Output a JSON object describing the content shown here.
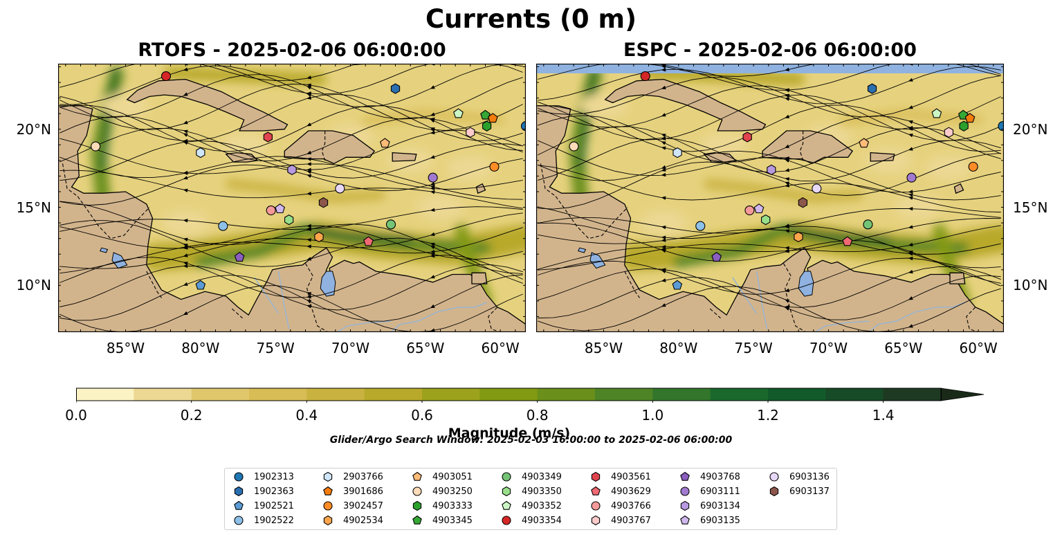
{
  "title": "Currents (0 m)",
  "panels": [
    {
      "title": "RTOFS - 2025-02-06 06:00:00"
    },
    {
      "title": "ESPC - 2025-02-06 06:00:00"
    }
  ],
  "axes": {
    "lon_labels": [
      "85°W",
      "80°W",
      "75°W",
      "70°W",
      "65°W",
      "60°W"
    ],
    "lon_values": [
      -85,
      -80,
      -75,
      -70,
      -65,
      -60
    ],
    "lat_labels": [
      "20°N",
      "15°N",
      "10°N"
    ],
    "lat_values": [
      20,
      15,
      10
    ],
    "lon_range": [
      -89.5,
      -58.3
    ],
    "lat_range": [
      7,
      24.2
    ]
  },
  "colorbar": {
    "label": "Magnitude (m/s)",
    "tick_labels": [
      "0.0",
      "0.2",
      "0.4",
      "0.6",
      "0.8",
      "1.0",
      "1.2",
      "1.4"
    ],
    "range": [
      0,
      1.5
    ],
    "extend": "max",
    "colors": [
      "#fbf3c4",
      "#ecd893",
      "#e0c76c",
      "#d8bc55",
      "#c9b23f",
      "#b8a92a",
      "#9da21d",
      "#829a12",
      "#6a8f1a",
      "#4e8426",
      "#33762b",
      "#1b682c",
      "#125a2a",
      "#174a27",
      "#1e3a22",
      "#1a2a18"
    ]
  },
  "search_window": "Glider/Argo Search Window: 2025-02-03 16:00:00 to 2025-02-06 06:00:00",
  "colors": {
    "land": "#d2b48c",
    "lake": "#8fb2e0",
    "river": "#9cb5cf"
  },
  "legend": [
    {
      "id": "1902313",
      "marker": "circle",
      "color": "#1f77b4"
    },
    {
      "id": "1902363",
      "marker": "hexagon",
      "color": "#2a6fb0"
    },
    {
      "id": "1902521",
      "marker": "pentagon",
      "color": "#5b9bd5"
    },
    {
      "id": "1902522",
      "marker": "circle",
      "color": "#8ec1e8"
    },
    {
      "id": "2903766",
      "marker": "hexagon",
      "color": "#cfe5f8"
    },
    {
      "id": "3901686",
      "marker": "pentagon",
      "color": "#f47c0d"
    },
    {
      "id": "3902457",
      "marker": "circle",
      "color": "#ff8c26"
    },
    {
      "id": "4902534",
      "marker": "hexagon",
      "color": "#ffa64d"
    },
    {
      "id": "4903051",
      "marker": "pentagon",
      "color": "#ffbb78"
    },
    {
      "id": "4903250",
      "marker": "circle",
      "color": "#ffdcb8"
    },
    {
      "id": "4903333",
      "marker": "hexagon",
      "color": "#2ca02c"
    },
    {
      "id": "4903345",
      "marker": "pentagon",
      "color": "#36a836"
    },
    {
      "id": "4903349",
      "marker": "circle",
      "color": "#74c476"
    },
    {
      "id": "4903350",
      "marker": "hexagon",
      "color": "#98df8a"
    },
    {
      "id": "4903352",
      "marker": "pentagon",
      "color": "#ccf5c5"
    },
    {
      "id": "4903354",
      "marker": "circle",
      "color": "#d62728"
    },
    {
      "id": "4903561",
      "marker": "hexagon",
      "color": "#e0444e"
    },
    {
      "id": "4903629",
      "marker": "pentagon",
      "color": "#ef6a72"
    },
    {
      "id": "4903766",
      "marker": "circle",
      "color": "#f59a9a"
    },
    {
      "id": "4903767",
      "marker": "hexagon",
      "color": "#fbcaca"
    },
    {
      "id": "4903768",
      "marker": "pentagon",
      "color": "#8a5fc0"
    },
    {
      "id": "6903111",
      "marker": "circle",
      "color": "#a17ad0"
    },
    {
      "id": "6903134",
      "marker": "hexagon",
      "color": "#b899e0"
    },
    {
      "id": "6903135",
      "marker": "pentagon",
      "color": "#d0b8ee"
    },
    {
      "id": "6903136",
      "marker": "circle",
      "color": "#e8d8f8"
    },
    {
      "id": "6903137",
      "marker": "hexagon",
      "color": "#8c564b"
    }
  ],
  "floats": [
    {
      "id": "4903354",
      "lon": -82.3,
      "lat": 23.4
    },
    {
      "id": "1902363",
      "lon": -67.0,
      "lat": 22.6
    },
    {
      "id": "4903352",
      "lon": -62.8,
      "lat": 21.0
    },
    {
      "id": "4903345",
      "lon": -61.0,
      "lat": 20.9
    },
    {
      "id": "3901686",
      "lon": -60.5,
      "lat": 20.7
    },
    {
      "id": "4903333",
      "lon": -60.9,
      "lat": 20.2
    },
    {
      "id": "4903767",
      "lon": -62.0,
      "lat": 19.8
    },
    {
      "id": "1902313",
      "lon": -58.3,
      "lat": 20.2
    },
    {
      "id": "4903561",
      "lon": -75.5,
      "lat": 19.5
    },
    {
      "id": "4903051",
      "lon": -67.7,
      "lat": 19.1
    },
    {
      "id": "4903250",
      "lon": -87.0,
      "lat": 18.9
    },
    {
      "id": "2903766",
      "lon": -80.0,
      "lat": 18.5
    },
    {
      "id": "6903134",
      "lon": -73.9,
      "lat": 17.4
    },
    {
      "id": "3902457",
      "lon": -60.4,
      "lat": 17.6
    },
    {
      "id": "6903111",
      "lon": -64.5,
      "lat": 16.9
    },
    {
      "id": "6903136",
      "lon": -70.7,
      "lat": 16.2
    },
    {
      "id": "6903137",
      "lon": -71.8,
      "lat": 15.3
    },
    {
      "id": "4903766",
      "lon": -75.3,
      "lat": 14.8
    },
    {
      "id": "6903135",
      "lon": -74.7,
      "lat": 14.9
    },
    {
      "id": "4903350",
      "lon": -74.1,
      "lat": 14.2
    },
    {
      "id": "4903349",
      "lon": -67.3,
      "lat": 13.9
    },
    {
      "id": "1902522",
      "lon": -78.5,
      "lat": 13.8
    },
    {
      "id": "4902534",
      "lon": -72.1,
      "lat": 13.1
    },
    {
      "id": "4903629",
      "lon": -68.8,
      "lat": 12.8
    },
    {
      "id": "4903768",
      "lon": -77.4,
      "lat": 11.8
    },
    {
      "id": "1902521",
      "lon": -80.0,
      "lat": 10.0
    }
  ]
}
